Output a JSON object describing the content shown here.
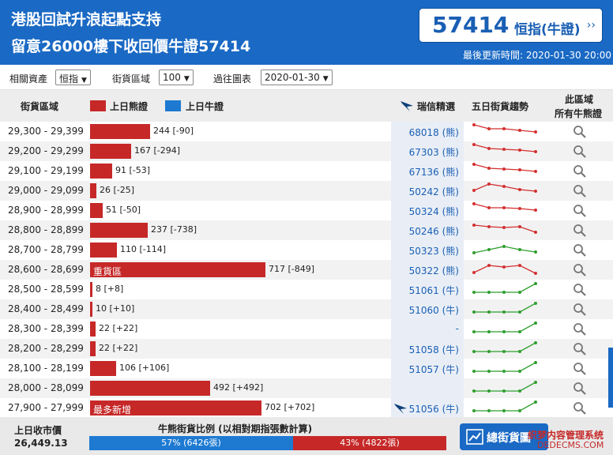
{
  "header": {
    "title_line1": "港股回試升浪起點支持",
    "title_line2": "留意26000樓下收回價牛證57414",
    "code": "57414",
    "code_label": "恒指(牛證)",
    "code_arrow": "››",
    "updated": "最後更新時間: 2020-01-30 20:00"
  },
  "filters": {
    "asset_label": "相關資產",
    "asset_value": "恒指",
    "range_label": "街貨區域",
    "range_value": "100",
    "past_label": "過往圖表",
    "past_value": "2020-01-30"
  },
  "table_header": {
    "range": "街貨區域",
    "bear_legend": "上日熊證",
    "bull_legend": "上日牛證",
    "picks": "瑞信精選",
    "trend": "五日街貨趨勢",
    "all_line1": "此區域",
    "all_line2": "所有牛熊證"
  },
  "colors": {
    "brand_blue": "#1a69c4",
    "bear_red": "#c62828",
    "bull_blue": "#1e7ad1",
    "trend_down": "#d32f2f",
    "trend_up": "#2e9e2e"
  },
  "rows": [
    {
      "range": "29,300 - 29,399",
      "value": 244,
      "text": "244 [-90]",
      "label": "",
      "code": "68018 (熊)",
      "icon": false,
      "trend": "down",
      "spark": [
        20,
        15,
        15,
        13,
        11
      ]
    },
    {
      "range": "29,200 - 29,299",
      "value": 167,
      "text": "167 [-294]",
      "label": "",
      "code": "67303 (熊)",
      "icon": false,
      "trend": "down",
      "spark": [
        20,
        15,
        14,
        13,
        11
      ]
    },
    {
      "range": "29,100 - 29,199",
      "value": 91,
      "text": "91 [-53]",
      "label": "",
      "code": "67136 (熊)",
      "icon": false,
      "trend": "down",
      "spark": [
        20,
        15,
        14,
        13,
        11
      ]
    },
    {
      "range": "29,000 - 29,099",
      "value": 26,
      "text": "26 [-25]",
      "label": "",
      "code": "50242 (熊)",
      "icon": false,
      "trend": "down",
      "spark": [
        12,
        20,
        17,
        13,
        11
      ]
    },
    {
      "range": "28,900 - 28,999",
      "value": 51,
      "text": "51 [-50]",
      "label": "",
      "code": "50324 (熊)",
      "icon": false,
      "trend": "down",
      "spark": [
        20,
        15,
        15,
        14,
        12
      ]
    },
    {
      "range": "28,800 - 28,899",
      "value": 237,
      "text": "237 [-738]",
      "label": "",
      "code": "50246 (熊)",
      "icon": false,
      "trend": "down",
      "spark": [
        18,
        16,
        15,
        16,
        9
      ]
    },
    {
      "range": "28,700 - 28,799",
      "value": 110,
      "text": "110 [-114]",
      "label": "",
      "code": "50323 (熊)",
      "icon": false,
      "trend": "up",
      "spark": [
        8,
        12,
        16,
        12,
        9
      ]
    },
    {
      "range": "28,600 - 28,699",
      "value": 717,
      "text": "717 [-849]",
      "label": "重貨區",
      "code": "50322 (熊)",
      "icon": false,
      "trend": "down",
      "spark": [
        8,
        17,
        15,
        17,
        7
      ]
    },
    {
      "range": "28,500 - 28,599",
      "value": 8,
      "text": "8 [+8]",
      "label": "",
      "code": "51061 (牛)",
      "icon": false,
      "trend": "up",
      "spark": [
        8,
        8,
        8,
        8,
        19
      ]
    },
    {
      "range": "28,400 - 28,499",
      "value": 10,
      "text": "10 [+10]",
      "label": "",
      "code": "51060 (牛)",
      "icon": false,
      "trend": "up",
      "spark": [
        8,
        8,
        8,
        8,
        19
      ]
    },
    {
      "range": "28,300 - 28,399",
      "value": 22,
      "text": "22 [+22]",
      "label": "",
      "code": "-",
      "icon": false,
      "trend": "up",
      "spark": [
        8,
        8,
        8,
        8,
        19
      ]
    },
    {
      "range": "28,200 - 28,299",
      "value": 22,
      "text": "22 [+22]",
      "label": "",
      "code": "51058 (牛)",
      "icon": false,
      "trend": "up",
      "spark": [
        8,
        8,
        8,
        8,
        19
      ]
    },
    {
      "range": "28,100 - 28,199",
      "value": 106,
      "text": "106 [+106]",
      "label": "",
      "code": "51057 (牛)",
      "icon": false,
      "trend": "up",
      "spark": [
        8,
        8,
        8,
        8,
        19
      ]
    },
    {
      "range": "28,000 - 28,099",
      "value": 492,
      "text": "492 [+492]",
      "label": "",
      "code": "",
      "icon": false,
      "trend": "up",
      "spark": [
        8,
        8,
        8,
        8,
        19
      ]
    },
    {
      "range": "27,900 - 27,999",
      "value": 702,
      "text": "702 [+702]",
      "label": "最多新增",
      "code": "51056 (牛)",
      "icon": true,
      "trend": "up",
      "spark": [
        8,
        8,
        8,
        8,
        19
      ]
    }
  ],
  "footer": {
    "prev_close_label": "上日收市價",
    "prev_close_value": "26,449.13",
    "ratio_title": "牛熊街貨比例 (以相對期指張數計算)",
    "bull_pct": 57,
    "bull_text": "57% (6426張)",
    "bear_text": "43% (4822張)",
    "chart_button": "總街貨圖",
    "watermark1": "织梦内容管理系统",
    "watermark2": "DEDECMS.COM"
  }
}
